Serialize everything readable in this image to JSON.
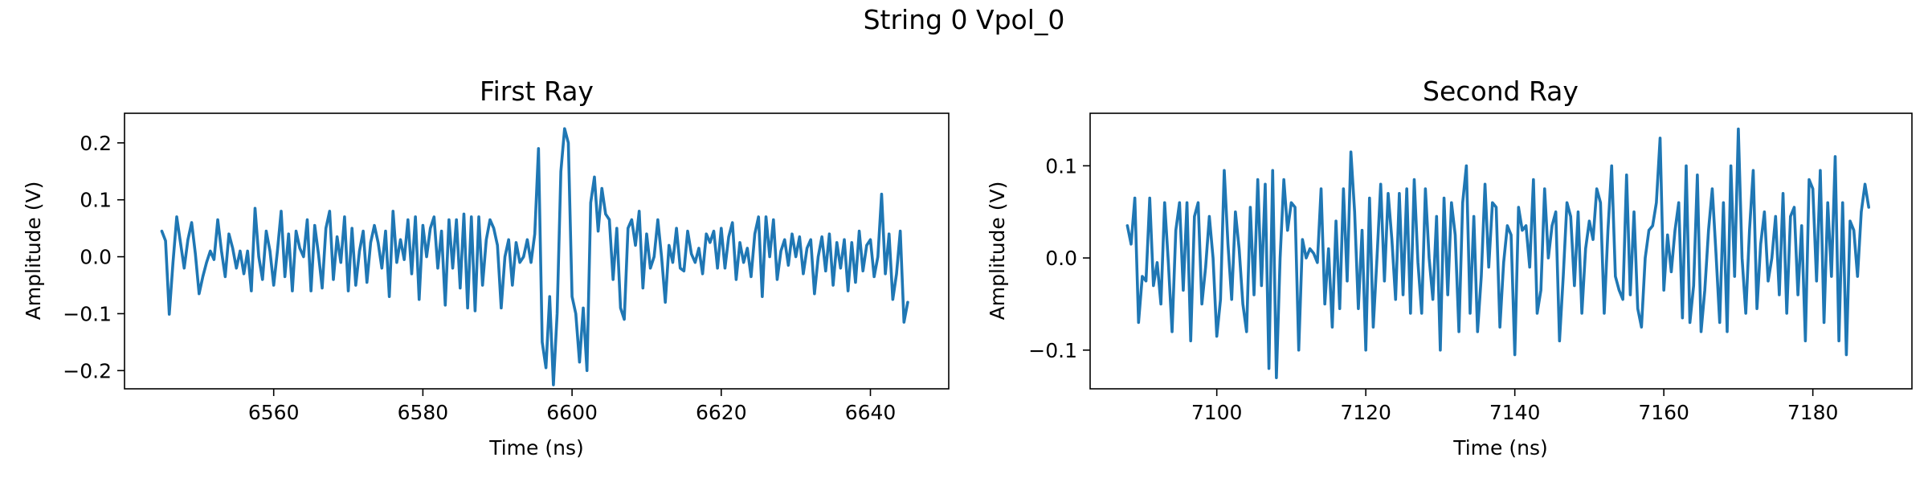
{
  "figure": {
    "title": "String 0 Vpol_0"
  },
  "colors": {
    "line": "#1f77b4",
    "frame": "#000000",
    "background": "#ffffff"
  },
  "chart_data": [
    {
      "type": "line",
      "title": "First Ray",
      "xlabel": "Time (ns)",
      "ylabel": "Amplitude (V)",
      "xlim": [
        6540.0,
        6650.5
      ],
      "ylim": [
        -0.232,
        0.252
      ],
      "xticks": [
        6560,
        6580,
        6600,
        6620,
        6640
      ],
      "yticks": [
        -0.2,
        -0.1,
        0.0,
        0.1,
        0.2
      ],
      "xtick_labels": [
        "6560",
        "6580",
        "6600",
        "6620",
        "6640"
      ],
      "ytick_labels": [
        "−0.2",
        "−0.1",
        "0.0",
        "0.1",
        "0.2"
      ],
      "grid": false,
      "series": [
        {
          "x": [
            6545.0,
            6545.5,
            6546.0,
            6546.5,
            6547.0,
            6547.5,
            6548.0,
            6548.5,
            6549.0,
            6549.5,
            6550.0,
            6550.5,
            6551.0,
            6551.5,
            6552.0,
            6552.5,
            6553.0,
            6553.5,
            6554.0,
            6554.5,
            6555.0,
            6555.5,
            6556.0,
            6556.5,
            6557.0,
            6557.5,
            6558.0,
            6558.5,
            6559.0,
            6559.5,
            6560.0,
            6560.5,
            6561.0,
            6561.5,
            6562.0,
            6562.5,
            6563.0,
            6563.5,
            6564.0,
            6564.5,
            6565.0,
            6565.5,
            6566.0,
            6566.5,
            6567.0,
            6567.5,
            6568.0,
            6568.5,
            6569.0,
            6569.5,
            6570.0,
            6570.5,
            6571.0,
            6571.5,
            6572.0,
            6572.5,
            6573.0,
            6573.5,
            6574.0,
            6574.5,
            6575.0,
            6575.5,
            6576.0,
            6576.5,
            6577.0,
            6577.5,
            6578.0,
            6578.5,
            6579.0,
            6579.5,
            6580.0,
            6580.5,
            6581.0,
            6581.5,
            6582.0,
            6582.5,
            6583.0,
            6583.5,
            6584.0,
            6584.5,
            6585.0,
            6585.5,
            6586.0,
            6586.5,
            6587.0,
            6587.5,
            6588.0,
            6588.5,
            6589.0,
            6589.5,
            6590.0,
            6590.5,
            6591.0,
            6591.5,
            6592.0,
            6592.5,
            6593.0,
            6593.5,
            6594.0,
            6594.5,
            6595.0,
            6595.5,
            6596.0,
            6596.5,
            6597.0,
            6597.5,
            6598.0,
            6598.5,
            6599.0,
            6599.5,
            6600.0,
            6600.5,
            6601.0,
            6601.5,
            6602.0,
            6602.5,
            6603.0,
            6603.5,
            6604.0,
            6604.5,
            6605.0,
            6605.5,
            6606.0,
            6606.5,
            6607.0,
            6607.5,
            6608.0,
            6608.5,
            6609.0,
            6609.5,
            6610.0,
            6610.5,
            6611.0,
            6611.5,
            6612.0,
            6612.5,
            6613.0,
            6613.5,
            6614.0,
            6614.5,
            6615.0,
            6615.5,
            6616.0,
            6616.5,
            6617.0,
            6617.5,
            6618.0,
            6618.5,
            6619.0,
            6619.5,
            6620.0,
            6620.5,
            6621.0,
            6621.5,
            6622.0,
            6622.5,
            6623.0,
            6623.5,
            6624.0,
            6624.5,
            6625.0,
            6625.5,
            6626.0,
            6626.5,
            6627.0,
            6627.5,
            6628.0,
            6628.5,
            6629.0,
            6629.5,
            6630.0,
            6630.5,
            6631.0,
            6631.5,
            6632.0,
            6632.5,
            6633.0,
            6633.5,
            6634.0,
            6634.5,
            6635.0,
            6635.5,
            6636.0,
            6636.5,
            6637.0,
            6637.5,
            6638.0,
            6638.5,
            6639.0,
            6639.5,
            6640.0,
            6640.5,
            6641.0,
            6641.5,
            6642.0,
            6642.5,
            6643.0,
            6643.5,
            6644.0,
            6644.5,
            6645.0
          ],
          "y": [
            0.045,
            0.028,
            -0.101,
            -0.01,
            0.07,
            0.025,
            -0.02,
            0.03,
            0.06,
            0.005,
            -0.065,
            -0.035,
            -0.01,
            0.01,
            -0.005,
            0.065,
            0.01,
            -0.035,
            0.04,
            0.015,
            -0.02,
            0.01,
            -0.03,
            0.01,
            -0.06,
            0.085,
            0.0,
            -0.04,
            0.045,
            0.01,
            -0.05,
            0.01,
            0.08,
            -0.035,
            0.04,
            -0.06,
            0.045,
            0.015,
            0.0,
            0.065,
            -0.06,
            0.055,
            0.005,
            -0.055,
            0.05,
            0.08,
            -0.04,
            0.035,
            -0.01,
            0.07,
            -0.06,
            0.05,
            -0.05,
            0.01,
            0.045,
            -0.045,
            0.025,
            0.055,
            0.025,
            -0.02,
            0.045,
            -0.07,
            0.08,
            -0.01,
            0.03,
            -0.005,
            0.065,
            -0.03,
            0.07,
            -0.075,
            0.055,
            0.0,
            0.05,
            0.07,
            -0.02,
            0.045,
            -0.085,
            0.065,
            -0.02,
            0.065,
            -0.055,
            0.075,
            -0.09,
            0.07,
            -0.095,
            0.07,
            -0.05,
            0.03,
            0.065,
            0.05,
            0.02,
            -0.09,
            0.0,
            0.03,
            -0.05,
            0.025,
            -0.01,
            0.0,
            0.03,
            -0.01,
            0.04,
            0.19,
            -0.15,
            -0.195,
            -0.07,
            -0.225,
            -0.1,
            0.15,
            0.225,
            0.2,
            -0.07,
            -0.1,
            -0.185,
            -0.09,
            -0.2,
            0.095,
            0.14,
            0.045,
            0.12,
            0.075,
            0.065,
            -0.04,
            0.05,
            -0.09,
            -0.11,
            0.05,
            0.065,
            0.02,
            0.08,
            -0.055,
            0.04,
            -0.02,
            0.0,
            0.065,
            0.0,
            -0.08,
            0.02,
            -0.01,
            0.05,
            -0.02,
            -0.025,
            0.045,
            0.005,
            -0.01,
            0.015,
            -0.03,
            0.04,
            0.025,
            0.045,
            -0.02,
            0.05,
            -0.02,
            0.035,
            0.06,
            -0.04,
            0.025,
            -0.01,
            0.015,
            -0.035,
            0.04,
            0.07,
            -0.07,
            0.07,
            0.0,
            0.065,
            -0.04,
            0.01,
            0.03,
            -0.015,
            0.04,
            0.0,
            0.035,
            -0.03,
            0.015,
            0.03,
            -0.065,
            0.0,
            0.035,
            -0.025,
            0.04,
            -0.05,
            0.025,
            -0.02,
            0.03,
            -0.06,
            0.025,
            -0.045,
            0.045,
            -0.025,
            0.02,
            0.03,
            -0.035,
            0.0,
            0.11,
            -0.03,
            0.04,
            -0.075,
            -0.03,
            0.045,
            -0.115,
            -0.08
          ]
        }
      ]
    },
    {
      "type": "line",
      "title": "Second Ray",
      "xlabel": "Time (ns)",
      "ylabel": "Amplitude (V)",
      "xlim": [
        7083.0,
        7193.3
      ],
      "ylim": [
        -0.142,
        0.157
      ],
      "xticks": [
        7100,
        7120,
        7140,
        7160,
        7180
      ],
      "yticks": [
        -0.1,
        0.0,
        0.1
      ],
      "xtick_labels": [
        "7100",
        "7120",
        "7140",
        "7160",
        "7180"
      ],
      "ytick_labels": [
        "−0.1",
        "0.0",
        "0.1"
      ],
      "grid": false,
      "series": [
        {
          "x": [
            7088.0,
            7088.5,
            7089.0,
            7089.5,
            7090.0,
            7090.5,
            7091.0,
            7091.5,
            7092.0,
            7092.5,
            7093.0,
            7093.5,
            7094.0,
            7094.5,
            7095.0,
            7095.5,
            7096.0,
            7096.5,
            7097.0,
            7097.5,
            7098.0,
            7098.5,
            7099.0,
            7099.5,
            7100.0,
            7100.5,
            7101.0,
            7101.5,
            7102.0,
            7102.5,
            7103.0,
            7103.5,
            7104.0,
            7104.5,
            7105.0,
            7105.5,
            7106.0,
            7106.5,
            7107.0,
            7107.5,
            7108.0,
            7108.5,
            7109.0,
            7109.5,
            7110.0,
            7110.5,
            7111.0,
            7111.5,
            7112.0,
            7112.5,
            7113.0,
            7113.5,
            7114.0,
            7114.5,
            7115.0,
            7115.5,
            7116.0,
            7116.5,
            7117.0,
            7117.5,
            7118.0,
            7118.5,
            7119.0,
            7119.5,
            7120.0,
            7120.5,
            7121.0,
            7121.5,
            7122.0,
            7122.5,
            7123.0,
            7123.5,
            7124.0,
            7124.5,
            7125.0,
            7125.5,
            7126.0,
            7126.5,
            7127.0,
            7127.5,
            7128.0,
            7128.5,
            7129.0,
            7129.5,
            7130.0,
            7130.5,
            7131.0,
            7131.5,
            7132.0,
            7132.5,
            7133.0,
            7133.5,
            7134.0,
            7134.5,
            7135.0,
            7135.5,
            7136.0,
            7136.5,
            7137.0,
            7137.5,
            7138.0,
            7138.5,
            7139.0,
            7139.5,
            7140.0,
            7140.5,
            7141.0,
            7141.5,
            7142.0,
            7142.5,
            7143.0,
            7143.5,
            7144.0,
            7144.5,
            7145.0,
            7145.5,
            7146.0,
            7146.5,
            7147.0,
            7147.5,
            7148.0,
            7148.5,
            7149.0,
            7149.5,
            7150.0,
            7150.5,
            7151.0,
            7151.5,
            7152.0,
            7152.5,
            7153.0,
            7153.5,
            7154.0,
            7154.5,
            7155.0,
            7155.5,
            7156.0,
            7156.5,
            7157.0,
            7157.5,
            7158.0,
            7158.5,
            7159.0,
            7159.5,
            7160.0,
            7160.5,
            7161.0,
            7161.5,
            7162.0,
            7162.5,
            7163.0,
            7163.5,
            7164.0,
            7164.5,
            7165.0,
            7165.5,
            7166.0,
            7166.5,
            7167.0,
            7167.5,
            7168.0,
            7168.5,
            7169.0,
            7169.5,
            7170.0,
            7170.5,
            7171.0,
            7171.5,
            7172.0,
            7172.5,
            7173.0,
            7173.5,
            7174.0,
            7174.5,
            7175.0,
            7175.5,
            7176.0,
            7176.5,
            7177.0,
            7177.5,
            7178.0,
            7178.5,
            7179.0,
            7179.5,
            7180.0,
            7180.5,
            7181.0,
            7181.5,
            7182.0,
            7182.5,
            7183.0,
            7183.5,
            7184.0,
            7184.5,
            7185.0,
            7185.5,
            7186.0,
            7186.5,
            7187.0,
            7187.5
          ],
          "y": [
            0.035,
            0.015,
            0.065,
            -0.07,
            -0.02,
            -0.025,
            0.065,
            -0.03,
            -0.005,
            -0.05,
            0.06,
            -0.005,
            -0.08,
            0.03,
            0.06,
            -0.035,
            0.06,
            -0.09,
            0.045,
            0.06,
            -0.05,
            -0.01,
            0.045,
            0.0,
            -0.085,
            -0.045,
            0.095,
            0.015,
            -0.045,
            0.05,
            0.01,
            -0.05,
            -0.08,
            0.055,
            -0.04,
            0.085,
            -0.03,
            0.08,
            -0.12,
            0.095,
            -0.13,
            0.0,
            0.085,
            0.03,
            0.06,
            0.055,
            -0.1,
            0.02,
            0.0,
            0.01,
            0.005,
            -0.005,
            0.075,
            -0.05,
            0.01,
            -0.075,
            0.04,
            -0.055,
            0.075,
            -0.025,
            0.115,
            0.05,
            -0.055,
            0.03,
            -0.1,
            0.065,
            -0.075,
            0.0,
            0.08,
            -0.025,
            0.07,
            0.02,
            -0.045,
            0.07,
            -0.04,
            0.075,
            -0.06,
            0.085,
            -0.005,
            -0.06,
            0.075,
            0.0,
            -0.045,
            0.045,
            -0.1,
            0.065,
            -0.04,
            0.06,
            0.025,
            -0.08,
            0.06,
            0.1,
            -0.06,
            0.045,
            -0.08,
            -0.02,
            0.08,
            -0.01,
            0.06,
            0.055,
            -0.075,
            -0.005,
            0.035,
            0.025,
            -0.105,
            0.055,
            0.03,
            0.035,
            -0.01,
            0.085,
            -0.06,
            -0.035,
            0.075,
            0.0,
            0.035,
            0.05,
            -0.09,
            -0.02,
            0.06,
            0.045,
            -0.03,
            0.05,
            -0.06,
            0.01,
            0.04,
            0.02,
            0.075,
            0.06,
            -0.06,
            0.03,
            0.1,
            -0.02,
            -0.035,
            -0.045,
            0.09,
            -0.04,
            0.05,
            -0.055,
            -0.075,
            0.0,
            0.03,
            0.035,
            0.06,
            0.13,
            -0.035,
            0.025,
            -0.015,
            0.03,
            0.06,
            -0.065,
            0.1,
            -0.07,
            -0.03,
            0.09,
            -0.08,
            -0.035,
            0.03,
            0.075,
            0.005,
            -0.07,
            0.06,
            -0.08,
            0.1,
            -0.02,
            0.14,
            0.0,
            -0.06,
            0.03,
            0.095,
            -0.055,
            0.015,
            0.05,
            -0.025,
            0.0,
            0.045,
            -0.04,
            0.07,
            -0.06,
            0.045,
            0.055,
            -0.04,
            0.035,
            -0.09,
            0.085,
            0.075,
            -0.025,
            0.095,
            -0.07,
            0.06,
            -0.02,
            0.11,
            -0.09,
            0.06,
            -0.105,
            0.04,
            0.03,
            -0.02,
            0.05,
            0.08,
            0.055
          ]
        }
      ]
    }
  ]
}
